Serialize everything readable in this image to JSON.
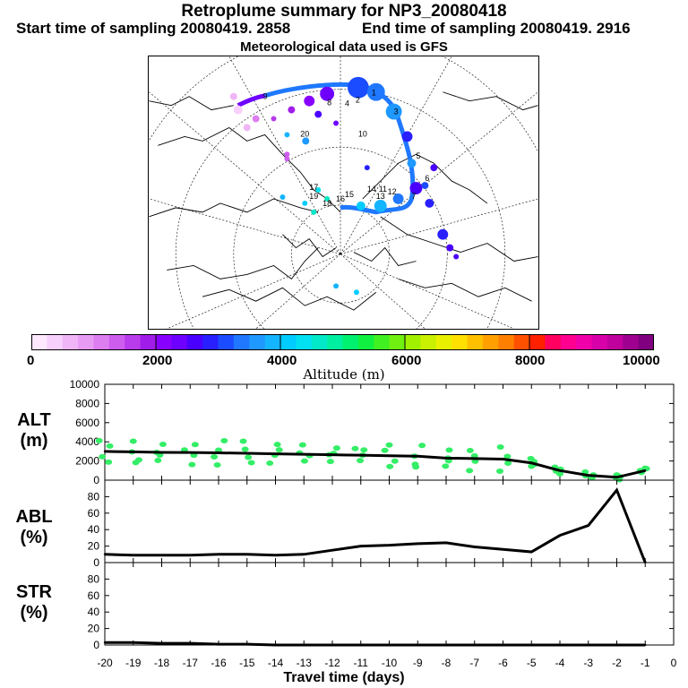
{
  "header": {
    "title": "Retroplume summary for NP3_20080418",
    "start": "Start time of sampling 20080419.  2858",
    "end": "End time of sampling 20080419.  2916",
    "met": "Meteorological data used is GFS"
  },
  "colorbar": {
    "title": "Altitude (m)",
    "ticks": [
      "0",
      "2000",
      "4000",
      "6000",
      "8000",
      "10000"
    ],
    "colors": [
      "#fde8fd",
      "#f7d0fb",
      "#efb5f7",
      "#e79bf3",
      "#dc7df0",
      "#cd5ded",
      "#b83ceb",
      "#a01ce8",
      "#8800ff",
      "#6e00ff",
      "#4a00ff",
      "#2820ff",
      "#1b4cff",
      "#1f78ff",
      "#1f98ff",
      "#14b4ff",
      "#00ccff",
      "#00e0f0",
      "#00e8c8",
      "#00eea0",
      "#00f070",
      "#10f040",
      "#40f020",
      "#70f010",
      "#a0f000",
      "#c8f000",
      "#e8f000",
      "#ffe000",
      "#ffc000",
      "#ffa000",
      "#ff8000",
      "#ff5000",
      "#ff2000",
      "#ff0060",
      "#ff0090",
      "#f000a8",
      "#d800a8",
      "#c0009c",
      "#a00090",
      "#800080"
    ]
  },
  "map": {
    "labels": [
      "1",
      "2",
      "3",
      "4",
      "5",
      "6",
      "7",
      "8",
      "9",
      "10",
      "11",
      "12",
      "13",
      "14",
      "15",
      "16",
      "17",
      "18",
      "19",
      "20"
    ]
  },
  "panels": [
    {
      "label1": "ALT",
      "label2": "(m)"
    },
    {
      "label1": "ABL",
      "label2": "(%)"
    },
    {
      "label1": "STR",
      "label2": "(%)"
    }
  ],
  "chart_data": [
    {
      "type": "line",
      "title": "ALT",
      "ylabel": "ALT (m)",
      "ylim": [
        0,
        10000
      ],
      "yticks": [
        "0",
        "2000",
        "4000",
        "6000",
        "8000",
        "10000"
      ],
      "x": [
        -20,
        -19,
        -18,
        -17,
        -16,
        -15,
        -14,
        -13,
        -12,
        -11,
        -10,
        -9,
        -8,
        -7,
        -6,
        -5,
        -4,
        -3,
        -2,
        -1
      ],
      "values": [
        3000,
        2950,
        2900,
        2880,
        2850,
        2800,
        2750,
        2700,
        2650,
        2600,
        2550,
        2500,
        2300,
        2250,
        2200,
        1800,
        1000,
        500,
        300,
        1000
      ],
      "scatter_color": "#33ee66"
    },
    {
      "type": "line",
      "title": "ABL",
      "ylabel": "ABL (%)",
      "ylim": [
        0,
        100
      ],
      "yticks": [
        "0",
        "20",
        "40",
        "60",
        "80"
      ],
      "x": [
        -20,
        -19,
        -18,
        -17,
        -16,
        -15,
        -14,
        -13,
        -12,
        -11,
        -10,
        -9,
        -8,
        -7,
        -6,
        -5,
        -4,
        -3,
        -2,
        -1
      ],
      "values": [
        10,
        9,
        9,
        9,
        10,
        10,
        9,
        10,
        15,
        20,
        21,
        23,
        24,
        19,
        16,
        13,
        33,
        45,
        88,
        0
      ]
    },
    {
      "type": "line",
      "title": "STR",
      "ylabel": "STR (%)",
      "ylim": [
        0,
        100
      ],
      "yticks": [
        "0",
        "20",
        "40",
        "60",
        "80"
      ],
      "x": [
        -20,
        -19,
        -18,
        -17,
        -16,
        -15,
        -14,
        -13,
        -12,
        -11,
        -10,
        -9,
        -8,
        -7,
        -6,
        -5,
        -4,
        -3,
        -2,
        -1
      ],
      "values": [
        3,
        3,
        2,
        2,
        1,
        1,
        0,
        0,
        0,
        0,
        0,
        0,
        0,
        0,
        0,
        0,
        0,
        0,
        0,
        0
      ]
    }
  ],
  "xaxis": {
    "title": "Travel time (days)",
    "ticks": [
      "-20",
      "-19",
      "-18",
      "-17",
      "-16",
      "-15",
      "-14",
      "-13",
      "-12",
      "-11",
      "-10",
      "-9",
      "-8",
      "-7",
      "-6",
      "-5",
      "-4",
      "-3",
      "-2",
      "-1",
      "0"
    ]
  }
}
